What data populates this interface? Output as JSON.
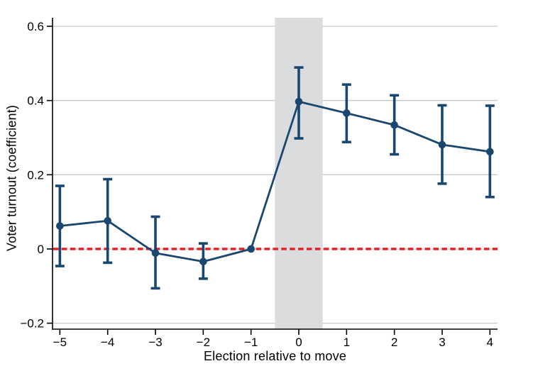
{
  "chart_data": {
    "type": "line",
    "subtype": "event-study-coefficient-plot",
    "title": "",
    "xlabel": "Election relative to move",
    "ylabel": "Voter turnout (coefficient)",
    "x": [
      -5,
      -4,
      -3,
      -2,
      -1,
      0,
      1,
      2,
      3,
      4
    ],
    "series": [
      {
        "name": "Voter turnout coefficient",
        "values": [
          0.062,
          0.076,
          -0.011,
          -0.034,
          0.0,
          0.397,
          0.366,
          0.334,
          0.281,
          0.262
        ],
        "ci_low": [
          -0.046,
          -0.037,
          -0.106,
          -0.08,
          null,
          0.298,
          0.288,
          0.255,
          0.176,
          0.14
        ],
        "ci_high": [
          0.17,
          0.188,
          0.087,
          0.015,
          null,
          0.489,
          0.443,
          0.414,
          0.387,
          0.386
        ]
      }
    ],
    "reference_period": -1,
    "xlim": [
      -5.154,
      4.159
    ],
    "ylim": [
      -0.216,
      0.623
    ],
    "xticks": [
      -5,
      -4,
      -3,
      -2,
      -1,
      0,
      1,
      2,
      3,
      4
    ],
    "xtick_labels": [
      "−5",
      "−4",
      "−3",
      "−2",
      "−1",
      "0",
      "1",
      "2",
      "3",
      "4"
    ],
    "yticks": [
      -0.2,
      0,
      0.2,
      0.4,
      0.6
    ],
    "ytick_labels": [
      "−0.2",
      "0",
      "0.2",
      "0.4",
      "0.6"
    ],
    "grid": true,
    "legend": "none",
    "reference_line": {
      "y": 0,
      "style": "dashed",
      "color": "#e31b23"
    },
    "shaded_band": {
      "x_from": -0.5,
      "x_to": 0.5,
      "color": "#dbdcdd"
    },
    "colors": {
      "series": "#1a476f",
      "grid": "#c9c9c9",
      "axis": "#000000",
      "background": "#ffffff"
    }
  }
}
